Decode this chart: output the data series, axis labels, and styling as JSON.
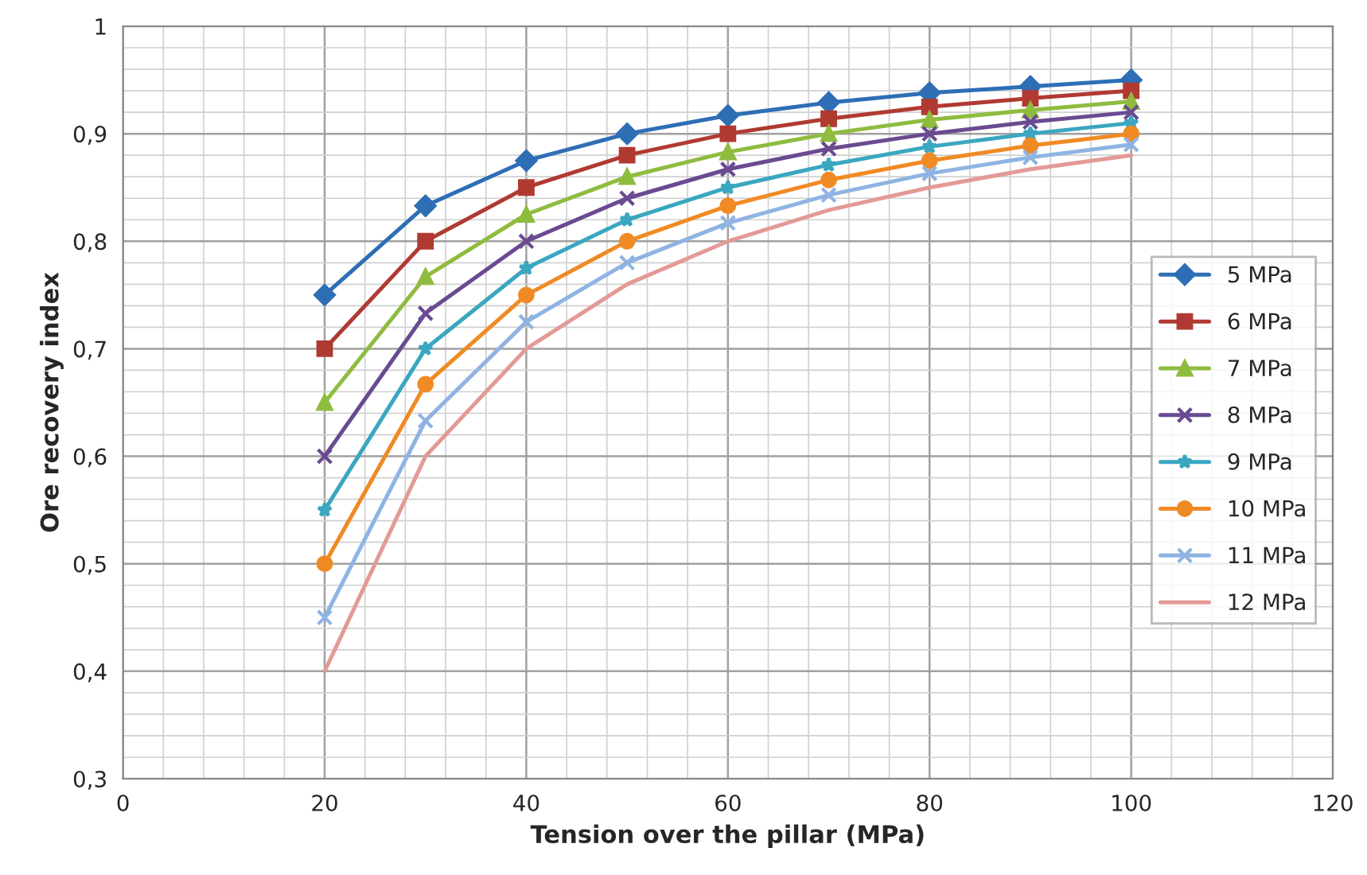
{
  "chart_data": {
    "type": "line",
    "xlabel": "Tension over the pillar (MPa)",
    "ylabel": "Ore recovery index",
    "x": [
      20,
      30,
      40,
      50,
      60,
      70,
      80,
      90,
      100
    ],
    "series": [
      {
        "name": "5 MPa",
        "color": "#2e6eb5",
        "marker": "diamond",
        "values": [
          0.75,
          0.833,
          0.875,
          0.9,
          0.917,
          0.929,
          0.938,
          0.944,
          0.95
        ]
      },
      {
        "name": "6 MPa",
        "color": "#b03a32",
        "marker": "square",
        "values": [
          0.7,
          0.8,
          0.85,
          0.88,
          0.9,
          0.914,
          0.925,
          0.933,
          0.94
        ]
      },
      {
        "name": "7 MPa",
        "color": "#8fbc3f",
        "marker": "triangle",
        "values": [
          0.65,
          0.767,
          0.825,
          0.86,
          0.883,
          0.9,
          0.913,
          0.922,
          0.93
        ]
      },
      {
        "name": "8 MPa",
        "color": "#6a4a91",
        "marker": "cross",
        "values": [
          0.6,
          0.733,
          0.8,
          0.84,
          0.867,
          0.886,
          0.9,
          0.911,
          0.92
        ]
      },
      {
        "name": "9 MPa",
        "color": "#3aa7c0",
        "marker": "star",
        "values": [
          0.55,
          0.7,
          0.775,
          0.82,
          0.85,
          0.871,
          0.888,
          0.9,
          0.91
        ]
      },
      {
        "name": "10 MPa",
        "color": "#f08a24",
        "marker": "circle",
        "values": [
          0.5,
          0.667,
          0.75,
          0.8,
          0.833,
          0.857,
          0.875,
          0.889,
          0.9
        ]
      },
      {
        "name": "11 MPa",
        "color": "#8fb4e3",
        "marker": "cross",
        "values": [
          0.45,
          0.633,
          0.725,
          0.78,
          0.817,
          0.843,
          0.863,
          0.878,
          0.89
        ]
      },
      {
        "name": "12 MPa",
        "color": "#e39a96",
        "marker": "none",
        "values": [
          0.4,
          0.6,
          0.7,
          0.76,
          0.8,
          0.829,
          0.85,
          0.867,
          0.88
        ]
      }
    ],
    "xlim": [
      0,
      120
    ],
    "xticks": [
      0,
      20,
      40,
      60,
      80,
      100,
      120
    ],
    "ylim": [
      0.3,
      1
    ],
    "yticks": [
      {
        "value": 0.3,
        "label": "0,3"
      },
      {
        "value": 0.4,
        "label": "0,4"
      },
      {
        "value": 0.5,
        "label": "0,5"
      },
      {
        "value": 0.6,
        "label": "0,6"
      },
      {
        "value": 0.7,
        "label": "0,7"
      },
      {
        "value": 0.8,
        "label": "0,8"
      },
      {
        "value": 0.9,
        "label": "0,9"
      },
      {
        "value": 1,
        "label": "1"
      }
    ],
    "grid": true,
    "legend": "right",
    "line_style": "solid"
  }
}
